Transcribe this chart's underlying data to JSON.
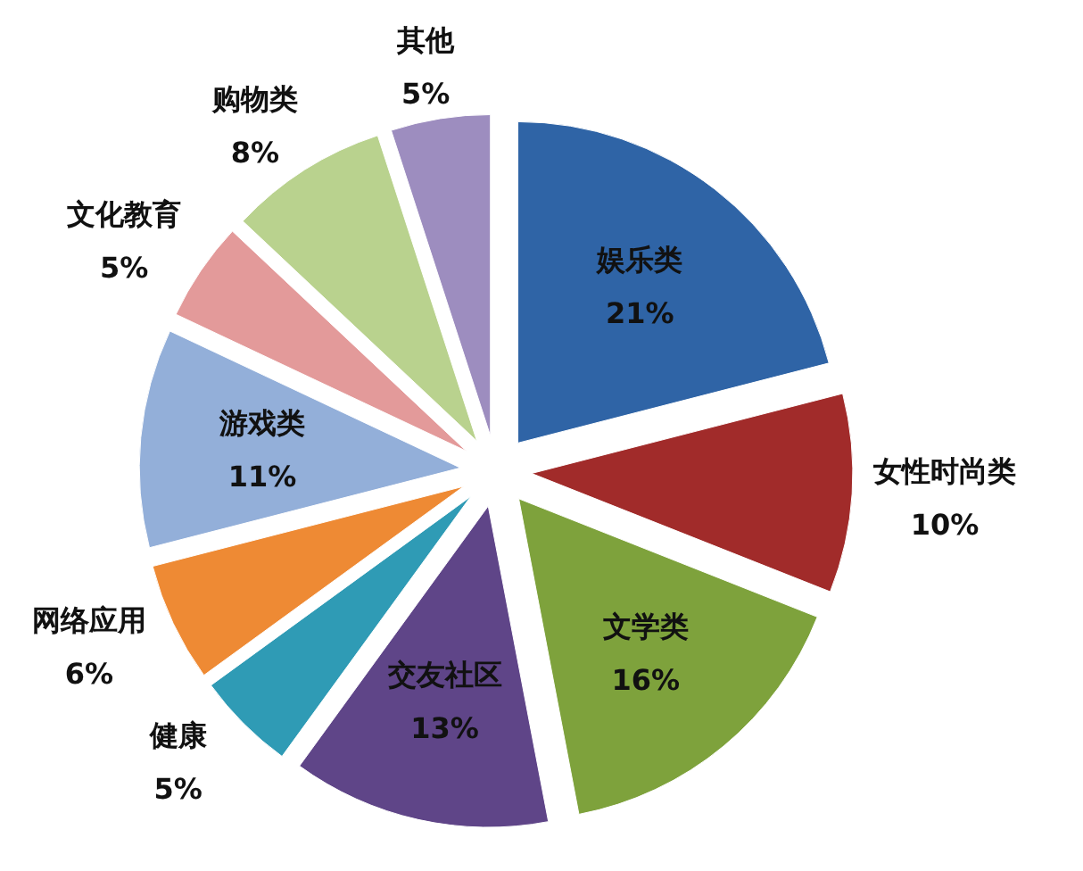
{
  "chart_data": {
    "type": "pie",
    "categories": [
      "娱乐类",
      "女性时尚类",
      "文学类",
      "交友社区",
      "健康",
      "网络应用",
      "游戏类",
      "文化教育",
      "购物类",
      "其他"
    ],
    "values": [
      21,
      10,
      16,
      13,
      5,
      6,
      11,
      5,
      8,
      5
    ],
    "value_labels": [
      "21%",
      "10%",
      "16%",
      "13%",
      "5%",
      "6%",
      "11%",
      "5%",
      "8%",
      "5%"
    ],
    "colors": [
      "#2f64a6",
      "#a12b2a",
      "#7ea23c",
      "#5f4588",
      "#2f9bb5",
      "#ee8a34",
      "#93afd9",
      "#e39a9a",
      "#b9d28e",
      "#9d8dbf"
    ],
    "legend": false
  }
}
